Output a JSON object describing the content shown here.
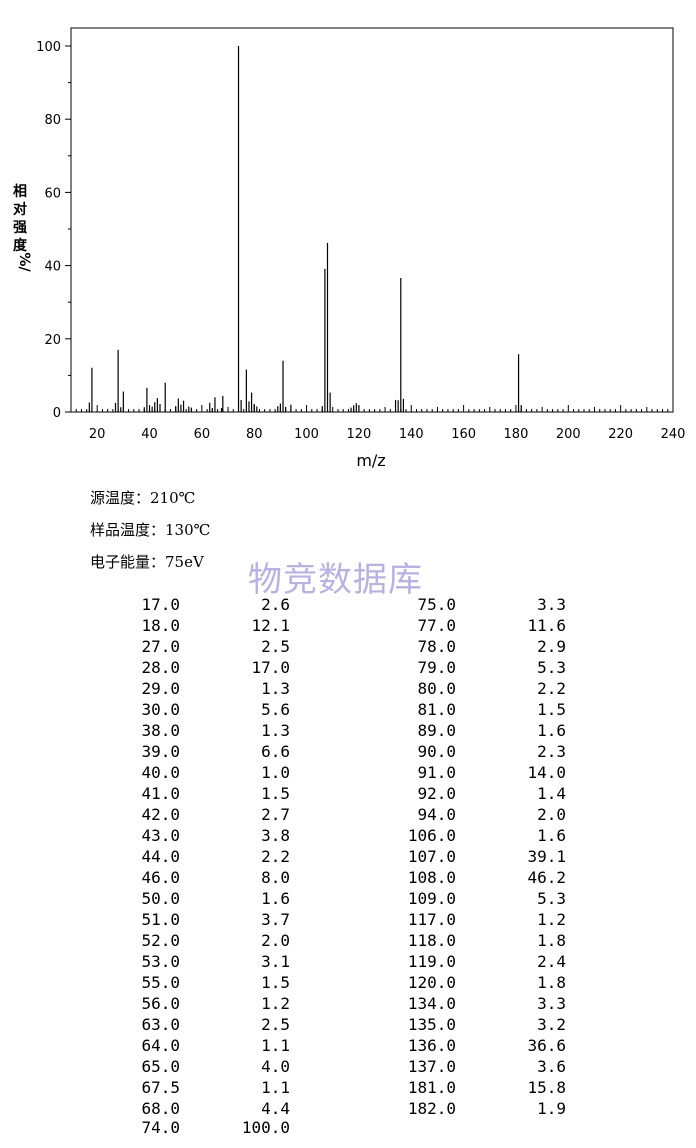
{
  "chart_data": {
    "type": "bar",
    "xlabel": "m/z",
    "ylabel_chars": [
      "相",
      "对",
      "强",
      "度",
      "%/"
    ],
    "xlim": [
      10,
      240
    ],
    "ylim": [
      0,
      100
    ],
    "x_ticks": [
      20,
      40,
      60,
      80,
      100,
      120,
      140,
      160,
      180,
      200,
      220,
      240
    ],
    "y_ticks": [
      0,
      20,
      40,
      60,
      80,
      100
    ],
    "grid": false,
    "x": [
      17.0,
      18.0,
      27.0,
      28.0,
      29.0,
      30.0,
      38.0,
      39.0,
      40.0,
      41.0,
      42.0,
      43.0,
      44.0,
      46.0,
      50.0,
      51.0,
      52.0,
      53.0,
      55.0,
      56.0,
      63.0,
      64.0,
      65.0,
      67.5,
      68.0,
      74.0,
      75.0,
      77.0,
      78.0,
      79.0,
      80.0,
      81.0,
      89.0,
      90.0,
      91.0,
      92.0,
      94.0,
      106.0,
      107.0,
      108.0,
      109.0,
      117.0,
      118.0,
      119.0,
      120.0,
      134.0,
      135.0,
      136.0,
      137.0,
      181.0,
      182.0
    ],
    "values": [
      2.6,
      12.1,
      2.5,
      17.0,
      1.3,
      5.6,
      1.3,
      6.6,
      1.0,
      1.5,
      2.7,
      3.8,
      2.2,
      8.0,
      1.6,
      3.7,
      2.0,
      3.1,
      1.5,
      1.2,
      2.5,
      1.1,
      4.0,
      1.1,
      4.4,
      100.0,
      3.3,
      11.6,
      2.9,
      5.3,
      2.2,
      1.5,
      1.6,
      2.3,
      14.0,
      1.4,
      2.0,
      1.6,
      39.1,
      46.2,
      5.3,
      1.2,
      1.8,
      2.4,
      1.8,
      3.3,
      3.2,
      36.6,
      3.6,
      15.8,
      1.9
    ]
  },
  "conditions": {
    "source_temp": "源温度：210℃",
    "sample_temp": "样品温度：130℃",
    "electron_energy": "电子能量：75eV"
  },
  "watermark": "物竞数据库",
  "peak_table": {
    "left": [
      [
        "17.0",
        "2.6"
      ],
      [
        "18.0",
        "12.1"
      ],
      [
        "27.0",
        "2.5"
      ],
      [
        "28.0",
        "17.0"
      ],
      [
        "29.0",
        "1.3"
      ],
      [
        "30.0",
        "5.6"
      ],
      [
        "38.0",
        "1.3"
      ],
      [
        "39.0",
        "6.6"
      ],
      [
        "40.0",
        "1.0"
      ],
      [
        "41.0",
        "1.5"
      ],
      [
        "42.0",
        "2.7"
      ],
      [
        "43.0",
        "3.8"
      ],
      [
        "44.0",
        "2.2"
      ],
      [
        "46.0",
        "8.0"
      ],
      [
        "50.0",
        "1.6"
      ],
      [
        "51.0",
        "3.7"
      ],
      [
        "52.0",
        "2.0"
      ],
      [
        "53.0",
        "3.1"
      ],
      [
        "55.0",
        "1.5"
      ],
      [
        "56.0",
        "1.2"
      ],
      [
        "63.0",
        "2.5"
      ],
      [
        "64.0",
        "1.1"
      ],
      [
        "65.0",
        "4.0"
      ],
      [
        "67.5",
        "1.1"
      ],
      [
        "68.0",
        "4.4"
      ],
      [
        "74.0",
        "100.0"
      ]
    ],
    "right": [
      [
        "75.0",
        "3.3"
      ],
      [
        "77.0",
        "11.6"
      ],
      [
        "78.0",
        "2.9"
      ],
      [
        "79.0",
        "5.3"
      ],
      [
        "80.0",
        "2.2"
      ],
      [
        "81.0",
        "1.5"
      ],
      [
        "89.0",
        "1.6"
      ],
      [
        "90.0",
        "2.3"
      ],
      [
        "91.0",
        "14.0"
      ],
      [
        "92.0",
        "1.4"
      ],
      [
        "94.0",
        "2.0"
      ],
      [
        "106.0",
        "1.6"
      ],
      [
        "107.0",
        "39.1"
      ],
      [
        "108.0",
        "46.2"
      ],
      [
        "109.0",
        "5.3"
      ],
      [
        "117.0",
        "1.2"
      ],
      [
        "118.0",
        "1.8"
      ],
      [
        "119.0",
        "2.4"
      ],
      [
        "120.0",
        "1.8"
      ],
      [
        "134.0",
        "3.3"
      ],
      [
        "135.0",
        "3.2"
      ],
      [
        "136.0",
        "36.6"
      ],
      [
        "137.0",
        "3.6"
      ],
      [
        "181.0",
        "15.8"
      ],
      [
        "182.0",
        "1.9"
      ]
    ]
  }
}
